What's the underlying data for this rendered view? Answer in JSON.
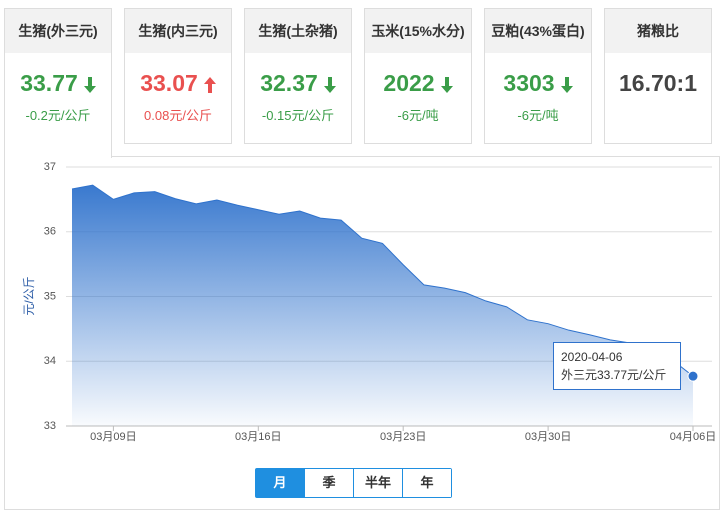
{
  "cards": [
    {
      "title": "生猪(外三元)",
      "value": "33.77",
      "change": "-0.2元/公斤"
    },
    {
      "title": "生猪(内三元)",
      "value": "33.07",
      "change": "0.08元/公斤"
    },
    {
      "title": "生猪(土杂猪)",
      "value": "32.37",
      "change": "-0.15元/公斤"
    },
    {
      "title": "玉米(15%水分)",
      "value": "2022",
      "change": "-6元/吨"
    },
    {
      "title": "豆粕(43%蛋白)",
      "value": "3303",
      "change": "-6元/吨"
    },
    {
      "title": "猪粮比",
      "value": "16.70:1"
    }
  ],
  "chart_data": {
    "type": "area",
    "y_label": "元/公斤",
    "categories": [
      null,
      null,
      "03月09日",
      null,
      null,
      null,
      null,
      null,
      null,
      "03月16日",
      null,
      null,
      null,
      null,
      null,
      null,
      "03月23日",
      null,
      null,
      null,
      null,
      null,
      null,
      "03月30日",
      null,
      null,
      null,
      null,
      null,
      null,
      "04月06日"
    ],
    "series": [
      {
        "name": "外三元",
        "color": "#2f72cc",
        "values": [
          36.66,
          36.72,
          36.5,
          36.6,
          36.62,
          36.51,
          36.43,
          36.49,
          36.41,
          36.34,
          36.27,
          36.32,
          36.21,
          36.18,
          35.9,
          35.82,
          35.49,
          35.18,
          35.13,
          35.06,
          34.93,
          34.84,
          34.64,
          34.58,
          34.48,
          34.41,
          34.33,
          34.28,
          34.17,
          34.02,
          33.77
        ]
      }
    ],
    "ylim": [
      33,
      37
    ],
    "yticks": [
      33,
      34,
      35,
      36,
      37
    ],
    "grid": true,
    "tooltip": {
      "date": "2020-04-06",
      "text": "外三元33.77元/公斤"
    }
  },
  "ranges": [
    "月",
    "季",
    "半年",
    "年"
  ]
}
